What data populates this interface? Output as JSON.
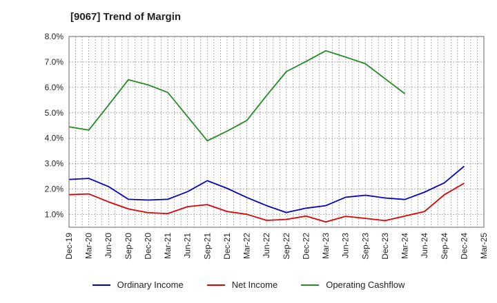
{
  "chart_data": {
    "type": "line",
    "title": "[9067]  Trend of Margin",
    "xlabel": "",
    "ylabel": "",
    "x": [
      "Dec-19",
      "Mar-20",
      "Jun-20",
      "Sep-20",
      "Dec-20",
      "Mar-21",
      "Jun-21",
      "Sep-21",
      "Dec-21",
      "Mar-22",
      "Jun-22",
      "Sep-22",
      "Dec-22",
      "Mar-23",
      "Jun-23",
      "Sep-23",
      "Dec-23",
      "Mar-24",
      "Jun-24",
      "Sep-24",
      "Dec-24",
      "Mar-25"
    ],
    "ylim": [
      0.5,
      8.0
    ],
    "yticks": [
      1.0,
      2.0,
      3.0,
      4.0,
      5.0,
      6.0,
      7.0,
      8.0
    ],
    "ytick_labels": [
      "1.0%",
      "2.0%",
      "3.0%",
      "4.0%",
      "5.0%",
      "6.0%",
      "7.0%",
      "8.0%"
    ],
    "grid": true,
    "legend_position": "bottom",
    "series": [
      {
        "name": "Ordinary Income",
        "color": "#0000cc",
        "values": [
          2.38,
          2.42,
          2.1,
          1.6,
          1.57,
          1.6,
          1.9,
          2.33,
          2.03,
          1.67,
          1.35,
          1.08,
          1.25,
          1.35,
          1.68,
          1.76,
          1.65,
          1.59,
          1.88,
          2.25,
          2.9,
          null
        ]
      },
      {
        "name": "Net Income",
        "color": "#dd0000",
        "values": [
          1.78,
          1.81,
          1.5,
          1.22,
          1.07,
          1.04,
          1.31,
          1.39,
          1.12,
          1.01,
          0.77,
          0.81,
          0.94,
          0.71,
          0.93,
          0.85,
          0.76,
          0.94,
          1.12,
          1.78,
          2.23,
          null
        ]
      },
      {
        "name": "Operating Cashflow",
        "color": "#228b22",
        "values": [
          4.45,
          4.32,
          5.3,
          6.3,
          6.1,
          5.8,
          4.85,
          3.9,
          4.28,
          4.7,
          5.68,
          6.62,
          7.02,
          7.44,
          7.19,
          6.93,
          6.34,
          5.75,
          null,
          null,
          null,
          null
        ]
      }
    ]
  }
}
